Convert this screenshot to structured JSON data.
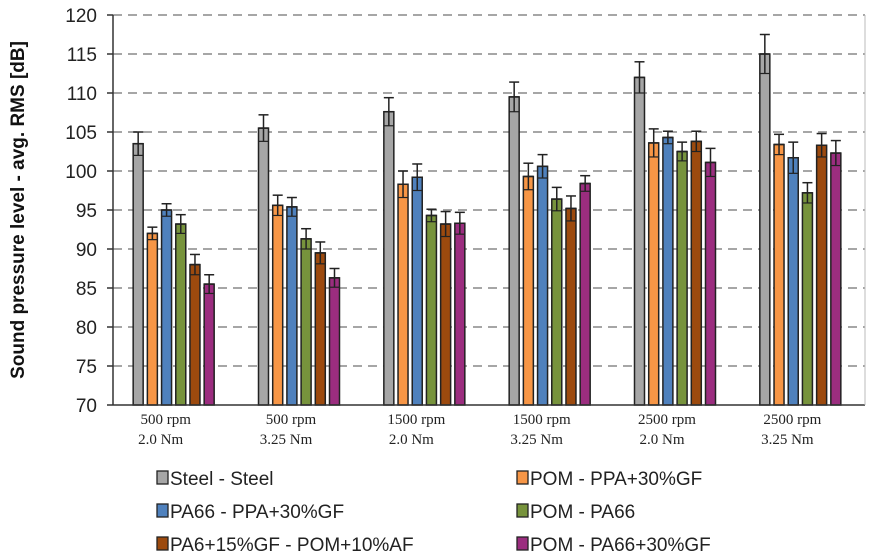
{
  "chart_data": {
    "type": "bar",
    "title": "",
    "xlabel": "",
    "ylabel": "Sound pressure level - avg. RMS [dB]",
    "ylim": [
      70,
      120
    ],
    "yticks": [
      70,
      75,
      80,
      85,
      90,
      95,
      100,
      105,
      110,
      115,
      120
    ],
    "grid": "horizontal dashed",
    "legend": "bottom",
    "categories": [
      [
        "500 rpm",
        "2.0 Nm"
      ],
      [
        "500 rpm",
        "3.25 Nm"
      ],
      [
        "1500 rpm",
        "2.0 Nm"
      ],
      [
        "1500 rpm",
        "3.25 Nm"
      ],
      [
        "2500 rpm",
        "2.0 Nm"
      ],
      [
        "2500 rpm",
        "3.25 Nm"
      ]
    ],
    "series": [
      {
        "name": "Steel - Steel",
        "color": "#a6a6a6",
        "values": [
          103.5,
          105.5,
          107.6,
          109.5,
          112.0,
          115.0
        ],
        "errors": [
          1.5,
          1.7,
          1.8,
          1.9,
          2.0,
          2.5
        ]
      },
      {
        "name": "POM - PPA+30%GF",
        "color": "#f79646",
        "values": [
          92.0,
          95.6,
          98.3,
          99.3,
          103.6,
          103.4
        ],
        "errors": [
          0.8,
          1.3,
          1.7,
          1.7,
          1.8,
          1.3
        ]
      },
      {
        "name": "PA66 - PPA+30%GF",
        "color": "#4f81bd",
        "values": [
          95.0,
          95.4,
          99.2,
          100.6,
          104.3,
          101.7
        ],
        "errors": [
          0.8,
          1.2,
          1.7,
          1.5,
          0.8,
          2.0
        ]
      },
      {
        "name": "POM - PA66",
        "color": "#77933c",
        "values": [
          93.2,
          91.3,
          94.3,
          96.4,
          102.5,
          97.2
        ],
        "errors": [
          1.2,
          1.3,
          0.8,
          1.5,
          1.2,
          1.3
        ]
      },
      {
        "name": "PA6+15%GF - POM+10%AF",
        "color": "#9c4a0e",
        "values": [
          88.0,
          89.5,
          93.2,
          95.2,
          103.8,
          103.3
        ],
        "errors": [
          1.3,
          1.4,
          1.6,
          1.6,
          1.3,
          1.5
        ]
      },
      {
        "name": "POM - PA66+30%GF",
        "color": "#9b2d7f",
        "values": [
          85.5,
          86.3,
          93.3,
          98.4,
          101.1,
          102.3
        ],
        "errors": [
          1.2,
          1.2,
          1.4,
          1.0,
          1.8,
          1.6
        ]
      }
    ]
  }
}
